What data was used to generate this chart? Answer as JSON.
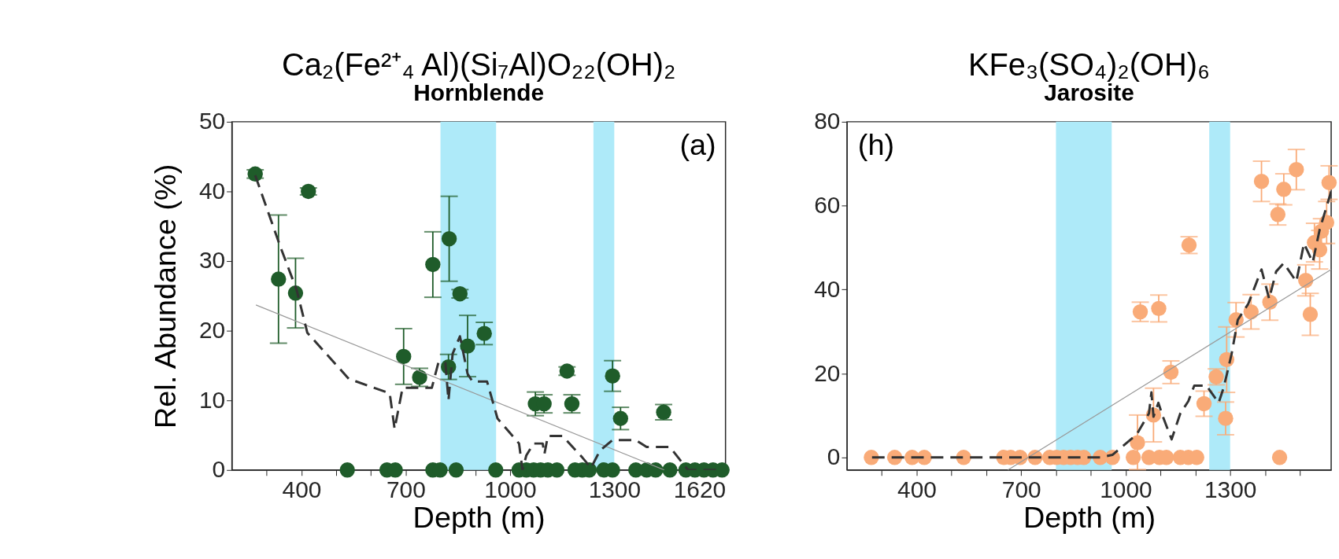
{
  "chart_data": [
    {
      "type": "scatter",
      "title": "Ca₂(Fe²⁺₄ Al)(Si₇Al)O₂₂(OH)₂",
      "subtitle": "Hornblende",
      "xlabel": "Depth (m)",
      "ylabel": "Rel. Abundance (%)",
      "xlim": [
        200,
        1620
      ],
      "xticks": [
        {
          "value": 300,
          "label": null
        },
        400,
        {
          "value": 500,
          "label": null
        },
        {
          "value": 600,
          "label": null
        },
        700,
        {
          "value": 800,
          "label": null
        },
        {
          "value": 900,
          "label": null
        },
        1000,
        {
          "value": 1100,
          "label": null
        },
        {
          "value": 1200,
          "label": null
        },
        1300,
        {
          "value": 1400,
          "label": null
        },
        {
          "value": 1500,
          "label": null
        },
        {
          "value": 1600,
          "label": null
        },
        1620
      ],
      "ylim": [
        0,
        50
      ],
      "yticks": [
        0,
        10,
        20,
        30,
        40,
        50
      ],
      "grid": false,
      "bands": [
        {
          "axis": "x",
          "from": 800,
          "to": 960,
          "color": "#aeeaf9"
        },
        {
          "axis": "x",
          "from": 1240,
          "to": 1300,
          "color": "#aeeaf9"
        }
      ],
      "annotations": [
        "(a)"
      ],
      "series": [
        {
          "type": "line",
          "line_style": "solid",
          "color": "#999999",
          "x": [
            269,
            1444
          ],
          "values": [
            23.7,
            0
          ]
        },
        {
          "type": "line",
          "line_style": "dashed",
          "color": "#333333",
          "x": [
            267,
            339,
            386,
            417,
            536,
            654,
            668,
            691,
            775,
            794,
            814,
            823,
            835,
            856,
            878,
            892,
            934,
            964,
            1026,
            1036,
            1047,
            1068,
            1094,
            1099,
            1109,
            1151,
            1208,
            1233,
            1259,
            1295,
            1362,
            1393,
            1460,
            1512,
            1610
          ],
          "values": [
            42.3,
            32.1,
            25.9,
            19.7,
            13.1,
            11.0,
            5.9,
            11.8,
            11.8,
            15.4,
            15.4,
            10.0,
            16.7,
            19.2,
            13.8,
            12.7,
            12.7,
            7.4,
            3.8,
            0,
            2.1,
            3.8,
            3.8,
            2.3,
            4.9,
            4.9,
            1.8,
            0.3,
            2.8,
            4.3,
            4.3,
            3.3,
            3.3,
            0,
            0
          ]
        },
        {
          "marker": "circle",
          "color": "#1f5c2a",
          "x": [
            267,
            334,
            383,
            420,
            532,
            646,
            670,
            694,
            740,
            778,
            778,
            799,
            823,
            825,
            845,
            856,
            878,
            926,
            959,
            1026,
            1047,
            1068,
            1073,
            1088,
            1098,
            1109,
            1135,
            1164,
            1178,
            1187,
            1208,
            1228,
            1270,
            1295,
            1295,
            1318,
            1362,
            1393,
            1419,
            1442,
            1460,
            1506,
            1532,
            1558,
            1584,
            1610
          ],
          "values": [
            42.5,
            27.4,
            25.4,
            40.0,
            0,
            0,
            0,
            16.3,
            13.3,
            29.5,
            0,
            0,
            14.8,
            33.2,
            0,
            25.3,
            17.8,
            19.6,
            0,
            0,
            0,
            0,
            9.5,
            0,
            9.5,
            0,
            0,
            14.2,
            9.5,
            0,
            0,
            0,
            0,
            13.5,
            0,
            7.4,
            0,
            0,
            0,
            8.3,
            0,
            0,
            0,
            0,
            0,
            0
          ],
          "errors": [
            0.6,
            9.2,
            5,
            0.5,
            null,
            null,
            null,
            4,
            1.3,
            4.7,
            null,
            null,
            1.8,
            6.1,
            null,
            0.6,
            4.4,
            1.6,
            null,
            null,
            null,
            null,
            1.7,
            null,
            1.3,
            null,
            null,
            0.6,
            1.3,
            null,
            null,
            null,
            null,
            2.2,
            null,
            1.6,
            null,
            null,
            null,
            1.1,
            null,
            null,
            null,
            null,
            null,
            null
          ]
        }
      ]
    },
    {
      "type": "scatter",
      "title": "KFe₃(SO₄)₂(OH)₆",
      "subtitle": "Jarosite",
      "xlabel": "Depth (m)",
      "xlim": [
        200,
        1590
      ],
      "xticks": [
        {
          "value": 300,
          "label": null
        },
        400,
        {
          "value": 500,
          "label": null
        },
        {
          "value": 600,
          "label": null
        },
        700,
        {
          "value": 800,
          "label": null
        },
        {
          "value": 900,
          "label": null
        },
        1000,
        {
          "value": 1100,
          "label": null
        },
        {
          "value": 1200,
          "label": null
        },
        1300,
        {
          "value": 1400,
          "label": null
        },
        {
          "value": 1500,
          "label": null
        }
      ],
      "ylim": [
        -3,
        80
      ],
      "yticks": [
        0,
        20,
        40,
        60,
        80
      ],
      "grid": false,
      "bands": [
        {
          "axis": "x",
          "from": 800,
          "to": 960,
          "color": "#aeeaf9"
        },
        {
          "axis": "x",
          "from": 1240,
          "to": 1300,
          "color": "#aeeaf9"
        }
      ],
      "annotations": [
        "(h)"
      ],
      "series": [
        {
          "type": "line",
          "line_style": "solid",
          "color": "#999999",
          "x": [
            662,
            1590
          ],
          "values": [
            -3,
            44.8
          ]
        },
        {
          "type": "line",
          "line_style": "dashed",
          "color": "#333333",
          "x": [
            272,
            927,
            962,
            1032,
            1067,
            1074,
            1080,
            1094,
            1107,
            1132,
            1157,
            1180,
            1197,
            1232,
            1267,
            1280,
            1290,
            1304,
            1322,
            1352,
            1390,
            1412,
            1432,
            1454,
            1490,
            1512,
            1537,
            1557,
            1590
          ],
          "values": [
            0,
            0,
            0.6,
            5.5,
            10.5,
            15.5,
            9.7,
            13.0,
            9.7,
            4.3,
            10.5,
            13.4,
            17.1,
            17.1,
            13.0,
            16.3,
            19.6,
            24.6,
            32.8,
            36.6,
            44.8,
            37.8,
            44.3,
            46.3,
            41.9,
            51.0,
            46.5,
            54.3,
            63.4
          ]
        },
        {
          "marker": "circle",
          "color": "#f9ab78",
          "x": [
            270,
            337,
            387,
            422,
            535,
            650,
            670,
            697,
            740,
            782,
            802,
            822,
            842,
            862,
            880,
            927,
            962,
            1022,
            1034,
            1042,
            1067,
            1080,
            1095,
            1097,
            1117,
            1130,
            1157,
            1180,
            1182,
            1204,
            1225,
            1260,
            1287,
            1290,
            1317,
            1360,
            1390,
            1414,
            1437,
            1442,
            1454,
            1490,
            1517,
            1530,
            1542,
            1557,
            1562,
            1577,
            1584
          ],
          "values": [
            0,
            0,
            0,
            0,
            0,
            0,
            0,
            0,
            0,
            0,
            0,
            0,
            0,
            0,
            0,
            0,
            0,
            0,
            3.5,
            34.7,
            0,
            10.1,
            35.5,
            0,
            0,
            20.3,
            0,
            0,
            50.6,
            0,
            12.8,
            19.2,
            9.3,
            23.3,
            32.8,
            34.7,
            65.8,
            37.0,
            57.9,
            0,
            63.9,
            68.6,
            42.2,
            34.1,
            51.2,
            49.5,
            53.9,
            56.0,
            65.5
          ],
          "errors": [
            null,
            null,
            null,
            null,
            null,
            null,
            null,
            null,
            null,
            null,
            null,
            null,
            null,
            null,
            null,
            null,
            null,
            null,
            [
              -2.9,
              10.1
            ],
            2.3,
            null,
            6.4,
            3.2,
            null,
            null,
            2.7,
            null,
            null,
            2,
            null,
            3,
            1.9,
            3.9,
            7.8,
            4.1,
            4.1,
            4.8,
            4.3,
            2.5,
            null,
            3.7,
            4.8,
            3.7,
            5,
            4.6,
            4.6,
            3,
            5,
            4
          ]
        }
      ]
    }
  ]
}
